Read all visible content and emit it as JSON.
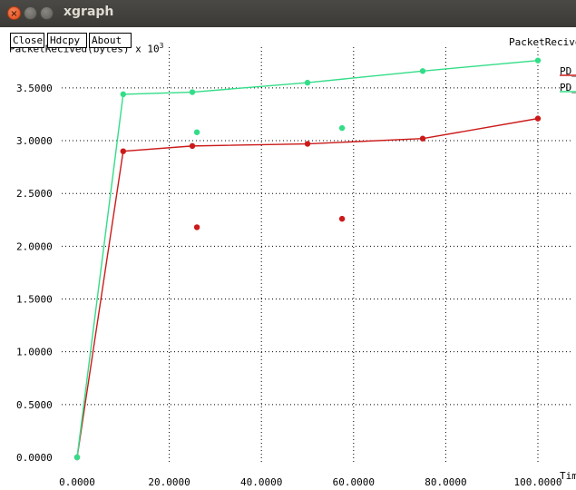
{
  "window": {
    "title": "xgraph",
    "close_glyph": "×"
  },
  "toolbar": {
    "close_label": "Close",
    "hdcpy_label": "Hdcpy",
    "about_label": "About"
  },
  "chart_data": {
    "type": "line",
    "title": "PacketRecive",
    "ylabel": "PacketRecived(bytes)",
    "ylabel_suffix": " x 10",
    "ylabel_exponent": "3",
    "xlabel": "Tim",
    "xlim": [
      0,
      100
    ],
    "ylim": [
      0,
      3.8
    ],
    "x_ticks": [
      {
        "value": 0,
        "label": "0.0000"
      },
      {
        "value": 20,
        "label": "20.0000"
      },
      {
        "value": 40,
        "label": "40.0000"
      },
      {
        "value": 60,
        "label": "60.0000"
      },
      {
        "value": 80,
        "label": "80.0000"
      },
      {
        "value": 100,
        "label": "100.0000"
      }
    ],
    "y_ticks": [
      {
        "value": 0,
        "label": "0.0000"
      },
      {
        "value": 0.5,
        "label": "0.5000"
      },
      {
        "value": 1.0,
        "label": "1.0000"
      },
      {
        "value": 1.5,
        "label": "1.5000"
      },
      {
        "value": 2.0,
        "label": "2.0000"
      },
      {
        "value": 2.5,
        "label": "2.5000"
      },
      {
        "value": 3.0,
        "label": "3.0000"
      },
      {
        "value": 3.5,
        "label": "3.5000"
      }
    ],
    "grid": true,
    "legend_position": "top-right",
    "series": [
      {
        "name": "PD_",
        "color": "#cc1a1a",
        "points": [
          [
            0,
            0.0
          ],
          [
            10,
            2.9
          ],
          [
            25,
            2.95
          ],
          [
            50,
            2.97
          ],
          [
            75,
            3.02
          ],
          [
            100,
            3.21
          ]
        ],
        "extra_points": [
          [
            26,
            2.18
          ],
          [
            57.5,
            2.26
          ]
        ]
      },
      {
        "name": "PD_",
        "color": "#33dd88",
        "points": [
          [
            0,
            0.0
          ],
          [
            10,
            3.44
          ],
          [
            25,
            3.46
          ],
          [
            50,
            3.55
          ],
          [
            75,
            3.66
          ],
          [
            100,
            3.76
          ]
        ],
        "extra_points": [
          [
            26,
            3.08
          ],
          [
            57.5,
            3.12
          ]
        ]
      }
    ]
  }
}
